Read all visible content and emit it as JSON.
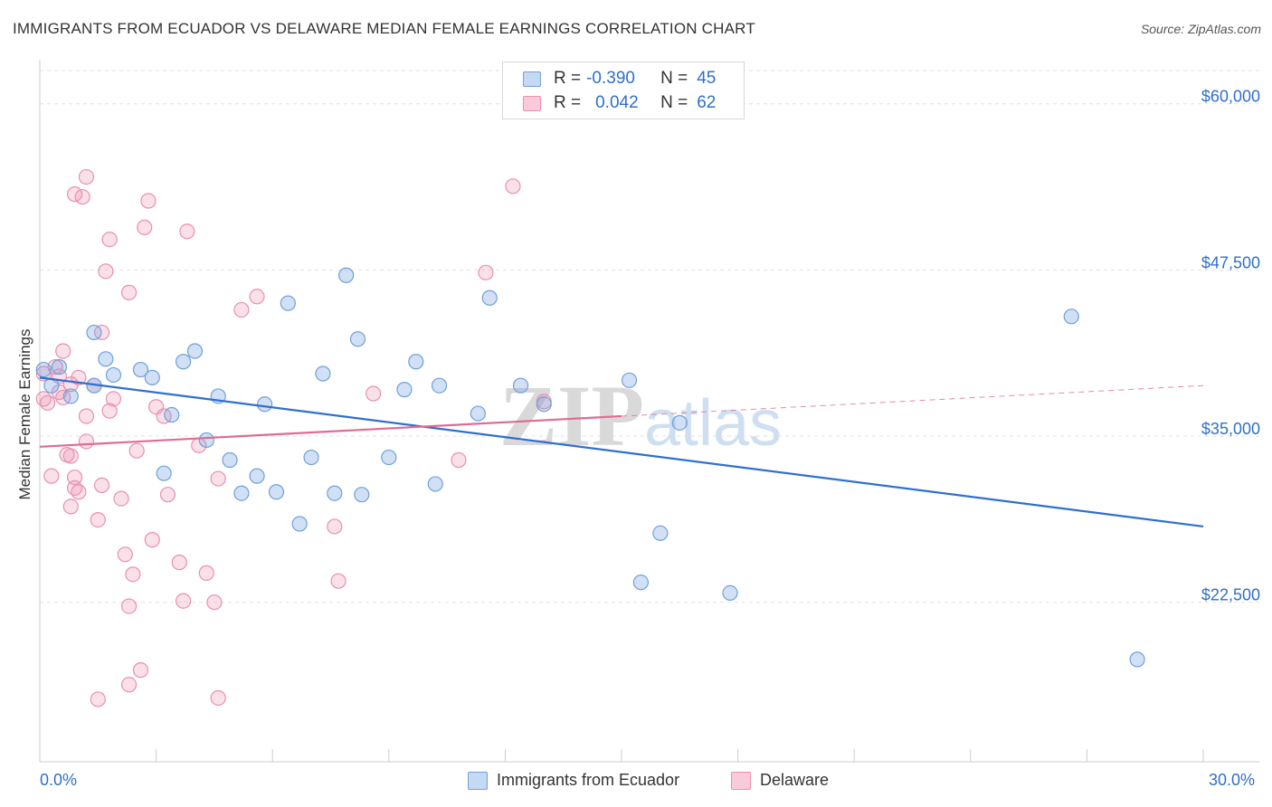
{
  "title": "IMMIGRANTS FROM ECUADOR VS DELAWARE MEDIAN FEMALE EARNINGS CORRELATION CHART",
  "source": "Source: ZipAtlas.com",
  "watermark": "ZIPatlas",
  "legend": {
    "rows": [
      {
        "r_label": "R =",
        "r_value": "-0.390",
        "n_label": "N =",
        "n_value": "45"
      },
      {
        "r_label": "R =",
        "r_value": "0.042",
        "n_label": "N =",
        "n_value": "62"
      }
    ]
  },
  "x_axis": {
    "min_label": "0.0%",
    "max_label": "30.0%"
  },
  "bottom_legend": [
    "Immigrants from Ecuador",
    "Delaware"
  ],
  "chart_data": {
    "type": "scatter",
    "title": "IMMIGRANTS FROM ECUADOR VS DELAWARE MEDIAN FEMALE EARNINGS CORRELATION CHART",
    "xlabel": "",
    "ylabel": "Median Female Earnings",
    "xlim": [
      0,
      30
    ],
    "ylim": [
      10500,
      62500
    ],
    "y_ticks": [
      22500,
      35000,
      47500,
      60000
    ],
    "y_tick_labels": [
      "$22,500",
      "$35,000",
      "$47,500",
      "$60,000"
    ],
    "colors": {
      "ecuador": "#6fa0dc",
      "delaware": "#eb8fb0",
      "ecuador_line": "#2f6fd0",
      "delaware_line": "#e06a96",
      "tick_text": "#2f6fc9"
    },
    "series": [
      {
        "name": "Immigrants from Ecuador",
        "r": -0.39,
        "n": 45,
        "trend": {
          "x0": 0,
          "y0": 39400,
          "x1": 30,
          "y1": 28200
        },
        "points": [
          [
            0.1,
            40000
          ],
          [
            0.3,
            38800
          ],
          [
            0.5,
            40200
          ],
          [
            0.8,
            38000
          ],
          [
            1.4,
            38800
          ],
          [
            1.4,
            42800
          ],
          [
            1.7,
            40800
          ],
          [
            1.9,
            39600
          ],
          [
            2.6,
            40000
          ],
          [
            2.9,
            39400
          ],
          [
            3.2,
            32200
          ],
          [
            3.4,
            36600
          ],
          [
            3.7,
            40600
          ],
          [
            4.0,
            41400
          ],
          [
            4.3,
            34700
          ],
          [
            4.6,
            38000
          ],
          [
            4.9,
            33200
          ],
          [
            5.2,
            30700
          ],
          [
            5.6,
            32000
          ],
          [
            5.8,
            37400
          ],
          [
            6.1,
            30800
          ],
          [
            6.4,
            45000
          ],
          [
            6.7,
            28400
          ],
          [
            7.0,
            33400
          ],
          [
            7.3,
            39700
          ],
          [
            7.6,
            30700
          ],
          [
            7.9,
            47100
          ],
          [
            8.2,
            42300
          ],
          [
            8.3,
            30600
          ],
          [
            9.0,
            33400
          ],
          [
            9.4,
            38500
          ],
          [
            9.7,
            40600
          ],
          [
            10.2,
            31400
          ],
          [
            10.3,
            38800
          ],
          [
            11.3,
            36700
          ],
          [
            11.6,
            45400
          ],
          [
            12.4,
            38800
          ],
          [
            13.0,
            37400
          ],
          [
            15.2,
            39200
          ],
          [
            15.5,
            24000
          ],
          [
            16.0,
            27700
          ],
          [
            16.5,
            36000
          ],
          [
            17.8,
            23200
          ],
          [
            26.6,
            44000
          ],
          [
            28.3,
            18200
          ]
        ]
      },
      {
        "name": "Delaware",
        "r": 0.042,
        "n": 62,
        "trend": {
          "x0": 0,
          "y0": 34200,
          "x1": 15,
          "y1": 36500,
          "dashed_to_x": 30,
          "dashed_to_y": 38800
        },
        "points": [
          [
            0.1,
            39700
          ],
          [
            0.1,
            37800
          ],
          [
            0.2,
            37500
          ],
          [
            0.3,
            32000
          ],
          [
            0.4,
            40200
          ],
          [
            0.5,
            38300
          ],
          [
            0.5,
            39500
          ],
          [
            0.6,
            41400
          ],
          [
            0.6,
            37900
          ],
          [
            0.7,
            33600
          ],
          [
            0.8,
            29700
          ],
          [
            0.8,
            33500
          ],
          [
            0.8,
            38900
          ],
          [
            0.9,
            31900
          ],
          [
            0.9,
            31100
          ],
          [
            1.0,
            30800
          ],
          [
            1.0,
            39400
          ],
          [
            1.1,
            53000
          ],
          [
            1.2,
            54500
          ],
          [
            1.2,
            36500
          ],
          [
            1.2,
            34600
          ],
          [
            1.4,
            38800
          ],
          [
            1.5,
            28700
          ],
          [
            1.6,
            31300
          ],
          [
            1.6,
            42800
          ],
          [
            1.7,
            47400
          ],
          [
            1.8,
            36900
          ],
          [
            1.8,
            49800
          ],
          [
            1.9,
            37800
          ],
          [
            2.1,
            30300
          ],
          [
            2.2,
            26100
          ],
          [
            2.3,
            45800
          ],
          [
            2.3,
            22200
          ],
          [
            2.3,
            16300
          ],
          [
            2.4,
            24600
          ],
          [
            2.5,
            33900
          ],
          [
            2.6,
            17400
          ],
          [
            2.7,
            50700
          ],
          [
            2.9,
            27200
          ],
          [
            3.0,
            37200
          ],
          [
            3.2,
            36500
          ],
          [
            3.3,
            30600
          ],
          [
            3.6,
            25500
          ],
          [
            3.7,
            22600
          ],
          [
            3.8,
            50400
          ],
          [
            4.1,
            34300
          ],
          [
            4.3,
            24700
          ],
          [
            4.5,
            22500
          ],
          [
            4.6,
            31800
          ],
          [
            4.6,
            15300
          ],
          [
            5.2,
            44500
          ],
          [
            5.6,
            45500
          ],
          [
            7.6,
            28200
          ],
          [
            7.7,
            24100
          ],
          [
            8.6,
            38200
          ],
          [
            10.8,
            33200
          ],
          [
            11.5,
            47300
          ],
          [
            12.2,
            53800
          ],
          [
            13.0,
            37600
          ],
          [
            1.5,
            15200
          ],
          [
            0.9,
            53200
          ],
          [
            2.8,
            52700
          ]
        ]
      }
    ]
  }
}
